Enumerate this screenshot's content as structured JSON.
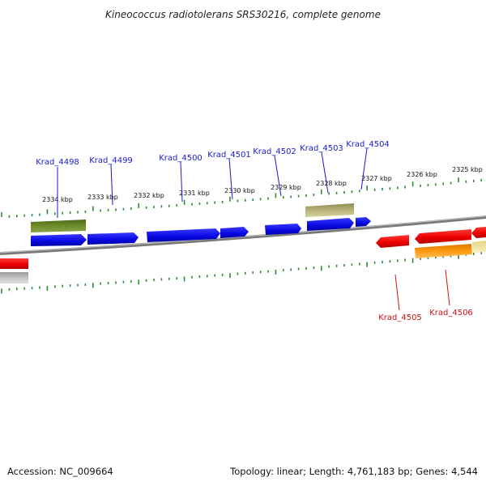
{
  "title": "Kineococcus radiotolerans SRS30216, complete genome",
  "accession_text": "Accession: NC_009664",
  "summary_text": "Topology: linear; Length: 4,761,183 bp; Genes: 4,544",
  "colors": {
    "backbone": "#8a8a8a",
    "tick": "#2e8b2e",
    "label_forward": "#1a1acc",
    "label_reverse": "#cc1111",
    "forward_cds": "#0a0ae6",
    "reverse_cds": "#ee0000",
    "dark_olive_feature": "#5e7a22",
    "khaki_feature": "#b9b57a",
    "orange_feature": "#ff9a10",
    "gray_feature": "#b8b8b8",
    "pale_yellow_feature": "#f3e7a0"
  },
  "ruler": {
    "ticks": [
      "2334 kbp",
      "2333 kbp",
      "2332 kbp",
      "2331 kbp",
      "2330 kbp",
      "2329 kbp",
      "2328 kbp",
      "2327 kbp",
      "2326 kbp",
      "2325 kbp"
    ]
  },
  "genes": [
    {
      "label": "Krad_4498",
      "strand": "forward"
    },
    {
      "label": "Krad_4499",
      "strand": "forward"
    },
    {
      "label": "Krad_4500",
      "strand": "forward"
    },
    {
      "label": "Krad_4501",
      "strand": "forward"
    },
    {
      "label": "Krad_4502",
      "strand": "forward"
    },
    {
      "label": "Krad_4503",
      "strand": "forward"
    },
    {
      "label": "Krad_4504",
      "strand": "forward"
    },
    {
      "label": "Krad_4505",
      "strand": "reverse"
    },
    {
      "label": "Krad_4506",
      "strand": "reverse"
    }
  ]
}
